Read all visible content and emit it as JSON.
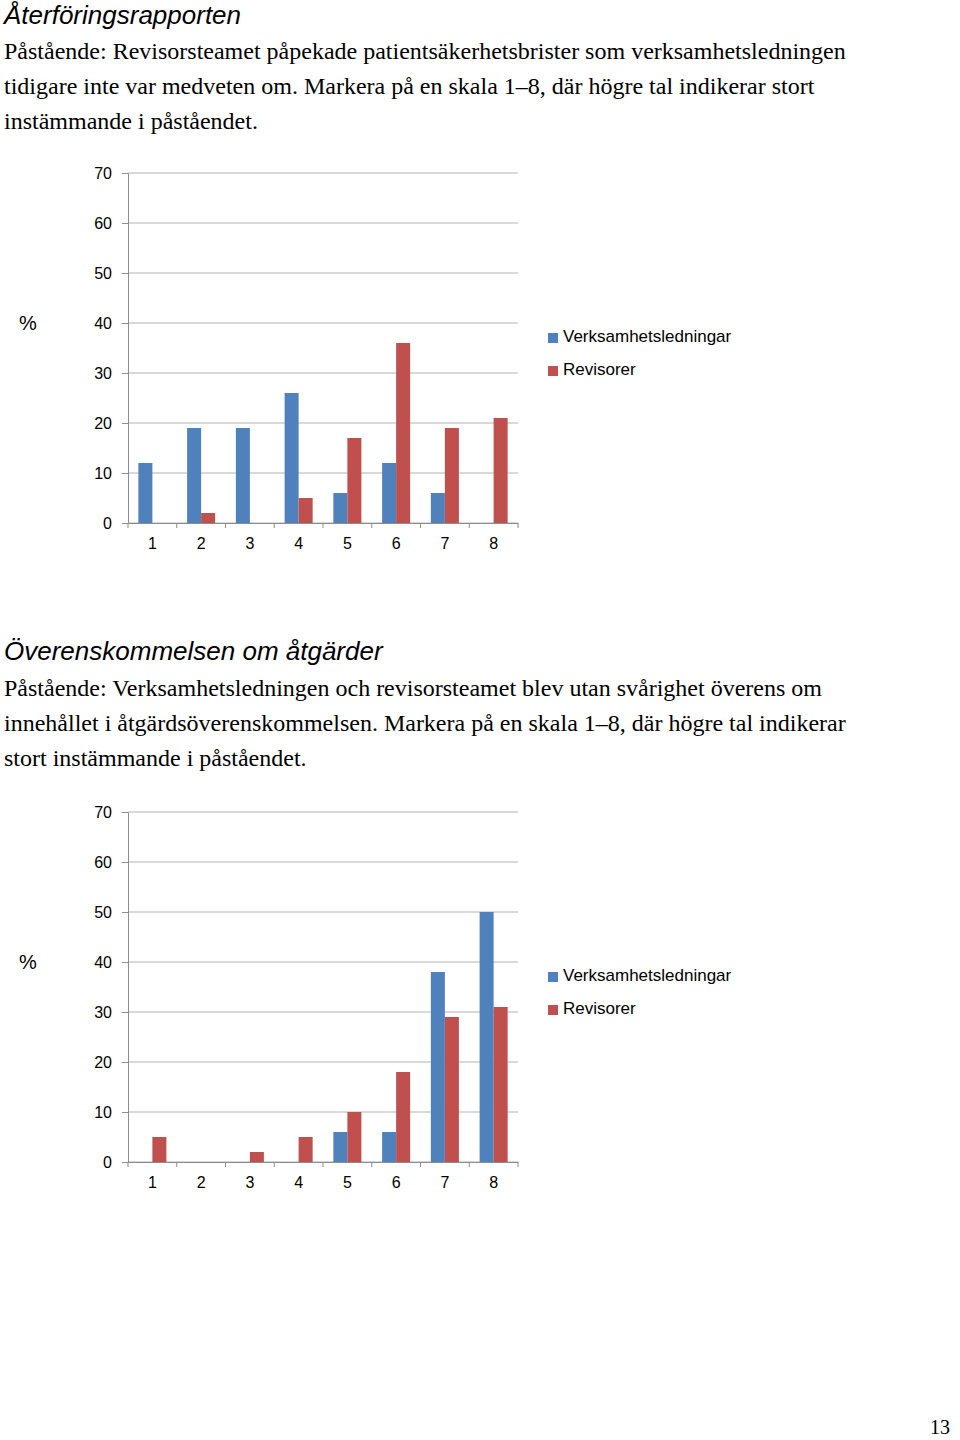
{
  "page_number": "13",
  "chart_data": [
    {
      "type": "bar",
      "title": "Återföringsrapporten",
      "subtitle": "Påstående: Revisorsteamet påpekade patientsäkerhetsbrister som verksamhetsledningen tidigare inte var medveten om. Markera på en skala 1–8, där högre tal indikerar stort instämmande i påståendet.",
      "y_label": "%",
      "categories": [
        "1",
        "2",
        "3",
        "4",
        "5",
        "6",
        "7",
        "8"
      ],
      "series": [
        {
          "name": "Verksamhetsledningar",
          "color": "#4f81bd",
          "values": [
            12,
            19,
            19,
            26,
            6,
            12,
            6,
            0
          ]
        },
        {
          "name": "Revisorer",
          "color": "#c0504d",
          "values": [
            0,
            2,
            0,
            5,
            17,
            36,
            19,
            21
          ]
        }
      ],
      "ylim": [
        0,
        70
      ],
      "yticks": [
        0,
        10,
        20,
        30,
        40,
        50,
        60,
        70
      ],
      "grid": true,
      "legend": "right"
    },
    {
      "type": "bar",
      "title": "Överenskommelsen om åtgärder",
      "subtitle": "Påstående: Verksamhetsledningen och revisorsteamet blev utan svårighet överens om innehållet i åtgärdsöverenskommelsen. Markera på en skala 1–8, där högre tal indikerar stort instämmande i påståendet.",
      "y_label": "%",
      "categories": [
        "1",
        "2",
        "3",
        "4",
        "5",
        "6",
        "7",
        "8"
      ],
      "series": [
        {
          "name": "Verksamhetsledningar",
          "color": "#4f81bd",
          "values": [
            0,
            0,
            0,
            0,
            6,
            6,
            38,
            50
          ]
        },
        {
          "name": "Revisorer",
          "color": "#c0504d",
          "values": [
            5,
            0,
            2,
            5,
            10,
            18,
            29,
            31
          ]
        }
      ],
      "ylim": [
        0,
        70
      ],
      "yticks": [
        0,
        10,
        20,
        30,
        40,
        50,
        60,
        70
      ],
      "grid": true,
      "legend": "right"
    }
  ]
}
